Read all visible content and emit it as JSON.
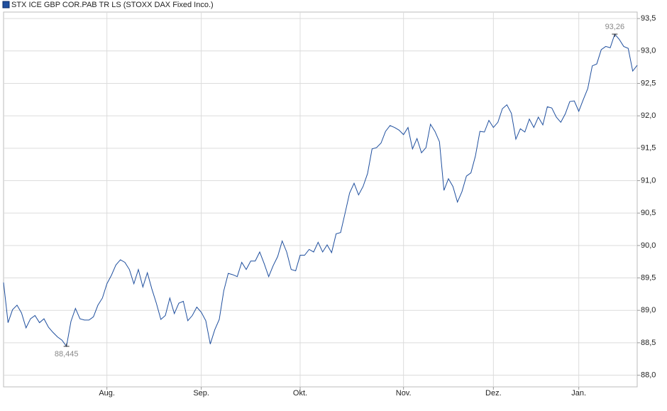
{
  "chart_data": {
    "type": "line",
    "x": [
      0,
      1,
      2,
      3,
      4,
      5,
      6,
      7,
      8,
      9,
      10,
      11,
      12,
      13,
      14,
      15,
      16,
      17,
      18,
      19,
      20,
      21,
      22,
      23,
      24,
      25,
      26,
      27,
      28,
      29,
      30,
      31,
      32,
      33,
      34,
      35,
      36,
      37,
      38,
      39,
      40,
      41,
      42,
      43,
      44,
      45,
      46,
      47,
      48,
      49,
      50,
      51,
      52,
      53,
      54,
      55,
      56,
      57,
      58,
      59,
      60,
      61,
      62,
      63,
      64,
      65,
      66,
      67,
      68,
      69,
      70,
      71,
      72,
      73,
      74,
      75,
      76,
      77,
      78,
      79,
      80,
      81,
      82,
      83,
      84,
      85,
      86,
      87,
      88,
      89,
      90,
      91,
      92,
      93,
      94,
      95,
      96,
      97,
      98,
      99,
      100,
      101,
      102,
      103,
      104,
      105,
      106,
      107,
      108,
      109,
      110,
      111,
      112,
      113,
      114,
      115,
      116,
      117,
      118,
      119,
      120,
      121,
      122,
      123,
      124,
      125,
      126,
      127,
      128,
      129,
      130,
      131,
      132,
      133,
      134,
      135,
      136,
      137,
      138,
      139,
      140,
      141
    ],
    "series": [
      {
        "name": "STX ICE GBP COR.PAB TR LS (STOXX DAX Fixed Inco.)",
        "color": "#1f4f9e",
        "values": [
          89.43,
          88.81,
          89.01,
          89.08,
          88.96,
          88.73,
          88.87,
          88.92,
          88.81,
          88.87,
          88.74,
          88.66,
          88.59,
          88.54,
          88.445,
          88.83,
          89.03,
          88.87,
          88.85,
          88.85,
          88.9,
          89.08,
          89.19,
          89.41,
          89.54,
          89.7,
          89.78,
          89.74,
          89.63,
          89.41,
          89.63,
          89.36,
          89.58,
          89.33,
          89.11,
          88.86,
          88.92,
          89.19,
          88.95,
          89.11,
          89.14,
          88.84,
          88.92,
          89.05,
          88.97,
          88.84,
          88.48,
          88.7,
          88.86,
          89.3,
          89.57,
          89.55,
          89.52,
          89.74,
          89.63,
          89.76,
          89.76,
          89.9,
          89.72,
          89.52,
          89.69,
          89.83,
          90.07,
          89.9,
          89.63,
          89.61,
          89.85,
          89.85,
          89.94,
          89.9,
          90.05,
          89.9,
          90.01,
          89.89,
          90.18,
          90.2,
          90.5,
          90.81,
          90.96,
          90.78,
          90.91,
          91.11,
          91.49,
          91.51,
          91.58,
          91.76,
          91.85,
          91.82,
          91.78,
          91.71,
          91.82,
          91.49,
          91.65,
          91.43,
          91.51,
          91.87,
          91.76,
          91.6,
          90.85,
          91.03,
          90.91,
          90.67,
          90.83,
          91.07,
          91.12,
          91.38,
          91.76,
          91.75,
          91.93,
          91.82,
          91.9,
          92.11,
          92.17,
          92.04,
          91.64,
          91.8,
          91.75,
          91.95,
          91.82,
          91.98,
          91.86,
          92.14,
          92.12,
          91.98,
          91.9,
          92.03,
          92.22,
          92.23,
          92.07,
          92.25,
          92.42,
          92.77,
          92.8,
          93.02,
          93.07,
          93.05,
          93.26,
          93.18,
          93.07,
          93.04,
          92.69,
          92.78
        ]
      }
    ],
    "xlim": [
      0,
      141
    ],
    "xticks": [
      {
        "value": 23,
        "label": "Aug."
      },
      {
        "value": 44,
        "label": "Sep."
      },
      {
        "value": 66,
        "label": "Okt."
      },
      {
        "value": 89,
        "label": "Nov."
      },
      {
        "value": 109,
        "label": "Dez."
      },
      {
        "value": 128,
        "label": "Jan."
      }
    ],
    "ylim": [
      87.82,
      93.6
    ],
    "yticks": [
      {
        "value": 88.0,
        "label": "88,0"
      },
      {
        "value": 88.5,
        "label": "88,5"
      },
      {
        "value": 89.0,
        "label": "89,0"
      },
      {
        "value": 89.5,
        "label": "89,5"
      },
      {
        "value": 90.0,
        "label": "90,0"
      },
      {
        "value": 90.5,
        "label": "90,5"
      },
      {
        "value": 91.0,
        "label": "91,0"
      },
      {
        "value": 91.5,
        "label": "91,5"
      },
      {
        "value": 92.0,
        "label": "92,0"
      },
      {
        "value": 92.5,
        "label": "92,5"
      },
      {
        "value": 93.0,
        "label": "93,0"
      },
      {
        "value": 93.5,
        "label": "93,5"
      }
    ],
    "grid": true,
    "annotations": [
      {
        "text": "88,445",
        "x": 14,
        "y": 88.445,
        "position": "below"
      },
      {
        "text": "93,26",
        "x": 136,
        "y": 93.26,
        "position": "above"
      }
    ]
  }
}
